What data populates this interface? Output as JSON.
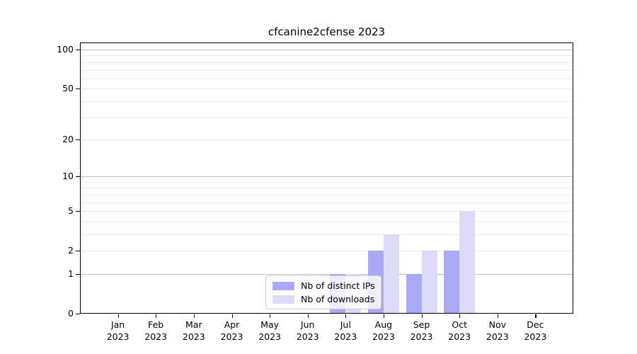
{
  "figure": {
    "title": "cfcanine2cfense 2023"
  },
  "chart_data": {
    "type": "bar",
    "title": "cfcanine2cfense 2023",
    "categories": [
      "Jan 2023",
      "Feb 2023",
      "Mar 2023",
      "Apr 2023",
      "May 2023",
      "Jun 2023",
      "Jul 2023",
      "Aug 2023",
      "Sep 2023",
      "Oct 2023",
      "Nov 2023",
      "Dec 2023"
    ],
    "x_tick_line1": [
      "Jan",
      "Feb",
      "Mar",
      "Apr",
      "May",
      "Jun",
      "Jul",
      "Aug",
      "Sep",
      "Oct",
      "Nov",
      "Dec"
    ],
    "x_tick_line2": "2023",
    "series": [
      {
        "name": "Nb of distinct IPs",
        "color": "#a9a9f7",
        "values": [
          0,
          0,
          0,
          0,
          0,
          0,
          1,
          2,
          1,
          2,
          0,
          0
        ]
      },
      {
        "name": "Nb of downloads",
        "color": "#dcdcf9",
        "values": [
          0,
          0,
          0,
          0,
          0,
          0,
          1,
          3,
          2,
          5,
          0,
          0
        ]
      }
    ],
    "yscale": "log1p",
    "ylim": [
      0,
      100
    ],
    "y_tick_labels": [
      0,
      1,
      2,
      5,
      10,
      20,
      50,
      100
    ],
    "y_major_gridlines": [
      1,
      10,
      100
    ],
    "y_minor_gridlines": [
      2,
      3,
      4,
      5,
      6,
      7,
      8,
      9,
      20,
      30,
      40,
      50,
      60,
      70,
      80,
      90
    ],
    "grid_major_color": "#bdbdbd",
    "grid_minor_color": "#ebebeb",
    "legend_position": "lower center",
    "legend": [
      "Nb of distinct IPs",
      "Nb of downloads"
    ]
  }
}
